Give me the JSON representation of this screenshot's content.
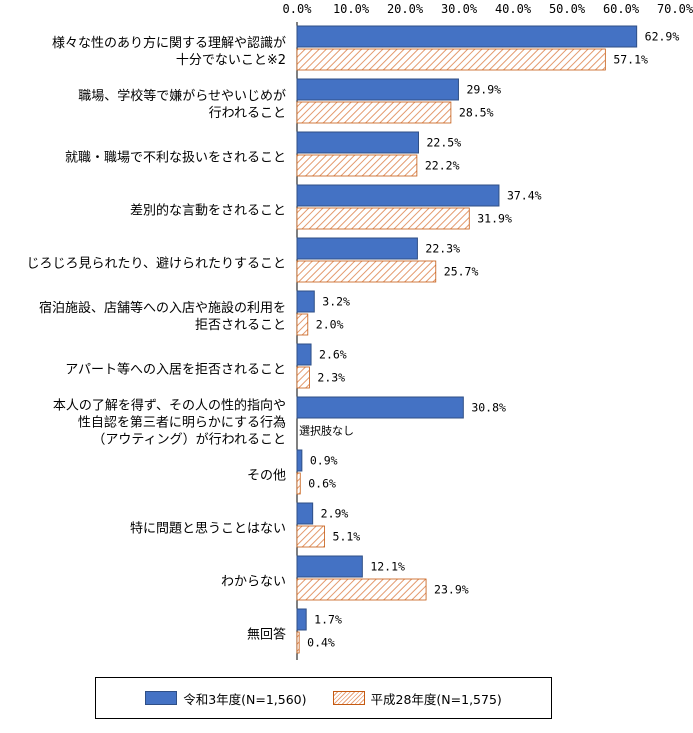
{
  "chart_data": {
    "type": "bar",
    "orientation": "horizontal",
    "xlim": [
      0,
      70
    ],
    "ticks": [
      "0.0%",
      "10.0%",
      "20.0%",
      "30.0%",
      "40.0%",
      "50.0%",
      "60.0%",
      "70.0%"
    ],
    "categories": [
      [
        "様々な性のあり方に関する理解や認識が",
        "十分でないこと※2"
      ],
      [
        "職場、学校等で嫌がらせやいじめが",
        "行われること"
      ],
      [
        "就職・職場で不利な扱いをされること"
      ],
      [
        "差別的な言動をされること"
      ],
      [
        "じろじろ見られたり、避けられたりすること"
      ],
      [
        "宿泊施設、店舗等への入店や施設の利用を",
        "拒否されること"
      ],
      [
        "アパート等への入居を拒否されること"
      ],
      [
        "本人の了解を得ず、その人の性的指向や",
        "性自認を第三者に明らかにする行為",
        "（アウティング）が行われること"
      ],
      [
        "その他"
      ],
      [
        "特に問題と思うことはない"
      ],
      [
        "わからない"
      ],
      [
        "無回答"
      ]
    ],
    "series": [
      {
        "name": "令和3年度(N=1,560)",
        "color": "#4472c4",
        "values": [
          62.9,
          29.9,
          22.5,
          37.4,
          22.3,
          3.2,
          2.6,
          30.8,
          0.9,
          2.9,
          12.1,
          1.7
        ],
        "labels": [
          "62.9%",
          "29.9%",
          "22.5%",
          "37.4%",
          "22.3%",
          "3.2%",
          "2.6%",
          "30.8%",
          "0.9%",
          "2.9%",
          "12.1%",
          "1.7%"
        ]
      },
      {
        "name": "平成28年度(N=1,575)",
        "color": "#e8a27a",
        "values": [
          57.1,
          28.5,
          22.2,
          31.9,
          25.7,
          2.0,
          2.3,
          null,
          0.6,
          5.1,
          23.9,
          0.4
        ],
        "labels": [
          "57.1%",
          "28.5%",
          "22.2%",
          "31.9%",
          "25.7%",
          "2.0%",
          "2.3%",
          "選択肢なし",
          "0.6%",
          "5.1%",
          "23.9%",
          "0.4%"
        ]
      }
    ],
    "grid": false,
    "legend_position": "bottom"
  }
}
